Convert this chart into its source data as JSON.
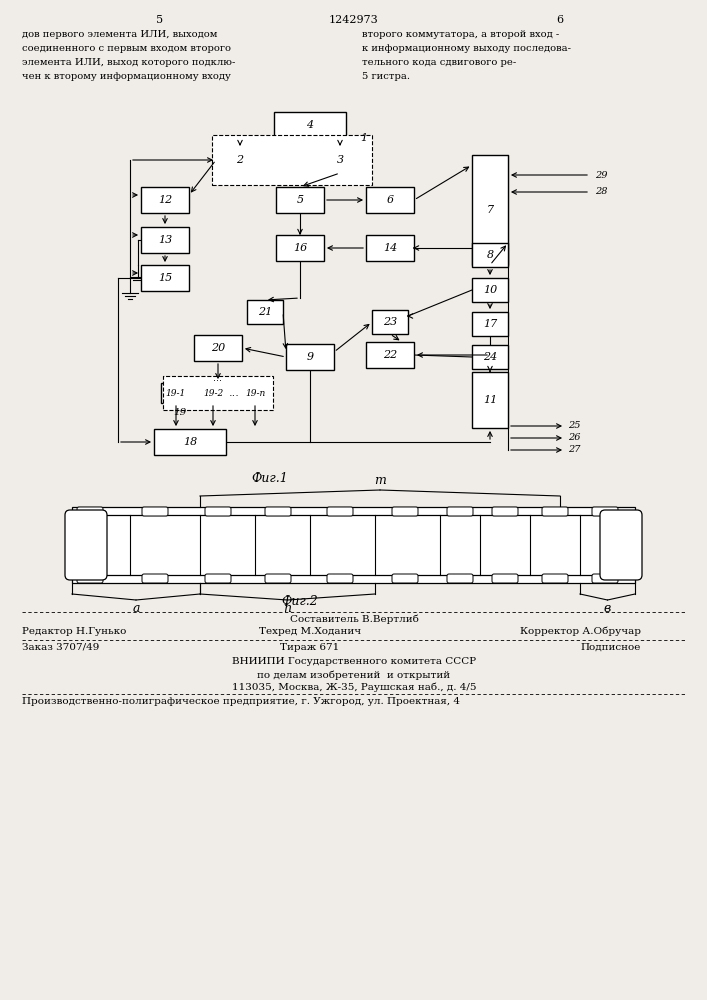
{
  "page_header": "1242973",
  "page_num_left": "5",
  "page_num_right": "6",
  "left_text": [
    "дов первого элемента ИЛИ, выходом",
    "соединенного с первым входом второго",
    "элемента ИЛИ, выход которого подклю-",
    "чен к второму информационному входу"
  ],
  "right_text": [
    "второго коммутатора, а второй вход -",
    "к информационному выходу последова-",
    "тельного кода сдвигового ре-",
    "5 гистра."
  ],
  "fig1_caption": "Фиг.1",
  "fig2_caption": "Фиг.2",
  "footnote_composer": "Составитель В.Вертлиб",
  "footnote_editor": "Редактор Н.Гунько",
  "footnote_techred": "Техред М.Ходанич",
  "footnote_corrector": "Корректор А.Обручар",
  "footnote_order": "Заказ 3707/49",
  "footnote_tirazh": "Тираж 671",
  "footnote_podpisnoe": "Подписное",
  "footnote_body": [
    "ВНИИПИ Государственного комитета СССР",
    "по делам изобретений  и открытий",
    "113035, Москва, Ж-35, Раушская наб., д. 4/5"
  ],
  "footnote_last": "Производственно-полиграфическое предприятие, г. Ужгород, ул. Проектная, 4",
  "bg_color": "#f0ede8"
}
